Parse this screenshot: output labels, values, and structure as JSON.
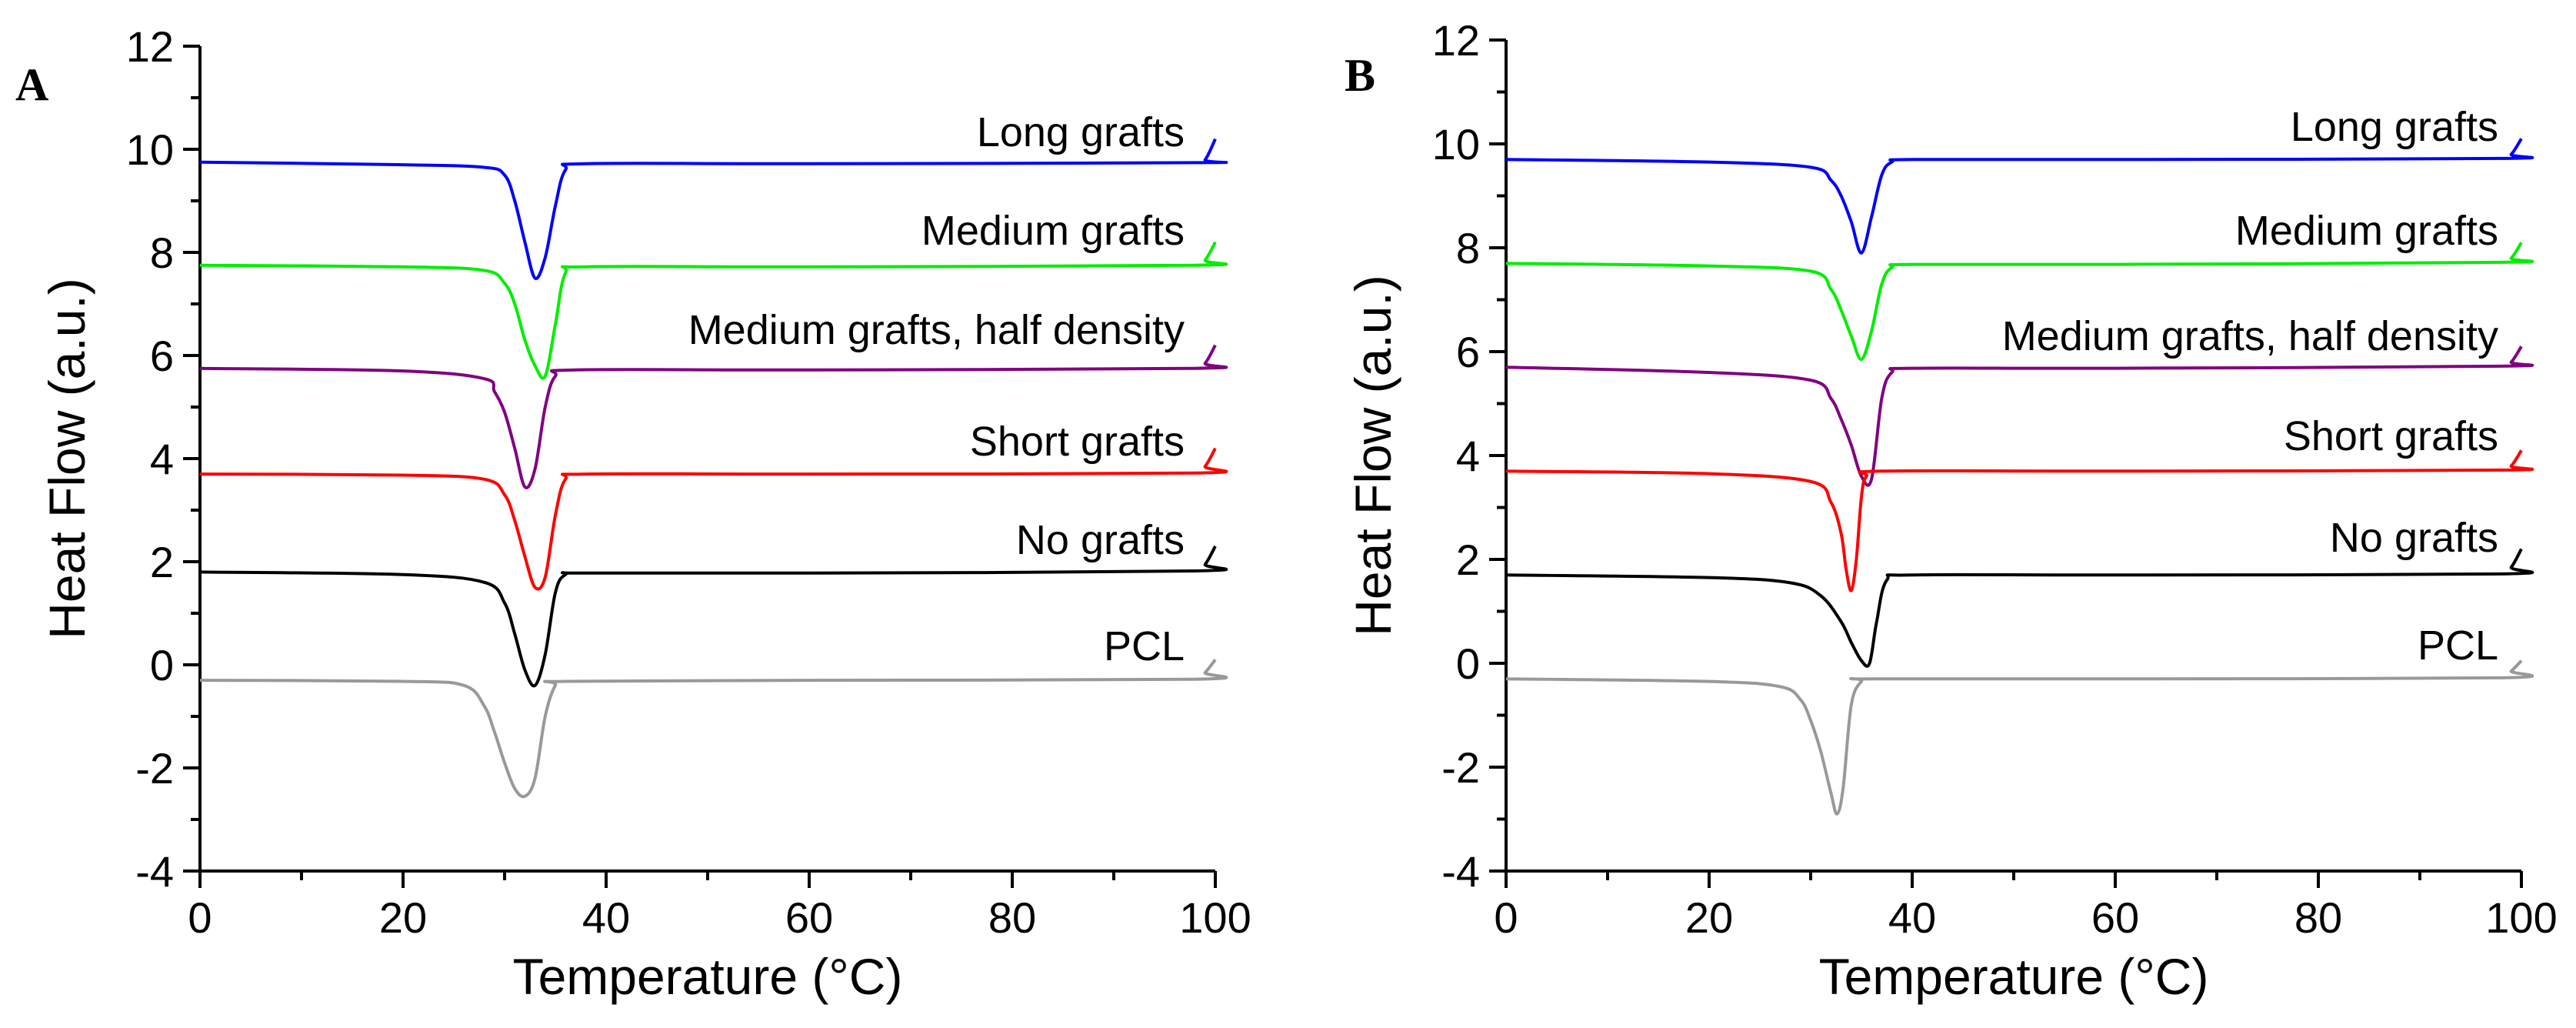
{
  "chart_data": [
    {
      "type": "line",
      "panel_label": "A",
      "xlabel": "Temperature (°C)",
      "ylabel": "Heat Flow (a.u.)",
      "xlim": [
        0,
        100
      ],
      "ylim": [
        -4,
        12
      ],
      "xticks": [
        0,
        20,
        40,
        60,
        80,
        100
      ],
      "yticks": [
        -4,
        -2,
        0,
        2,
        4,
        6,
        8,
        10,
        12
      ],
      "series": [
        {
          "name": "Long grafts",
          "color": "#0000ff",
          "x": [
            0,
            20,
            28,
            30,
            31,
            32,
            33,
            34,
            35,
            36,
            38,
            60,
            98,
            99,
            100
          ],
          "y": [
            9.75,
            9.7,
            9.65,
            9.5,
            9.0,
            8.2,
            7.5,
            7.9,
            8.9,
            9.6,
            9.72,
            9.72,
            9.74,
            9.8,
            10.2
          ]
        },
        {
          "name": "Medium grafts",
          "color": "#00ee00",
          "x": [
            0,
            20,
            28,
            30,
            31,
            32,
            33,
            34,
            35,
            36,
            38,
            60,
            98,
            99,
            100
          ],
          "y": [
            7.75,
            7.72,
            7.65,
            7.4,
            7.0,
            6.3,
            5.8,
            5.6,
            6.6,
            7.6,
            7.72,
            7.72,
            7.75,
            7.85,
            8.2
          ]
        },
        {
          "name": "Medium grafts, half density",
          "color": "#800080",
          "x": [
            0,
            20,
            28,
            29,
            30,
            31,
            32,
            33,
            34,
            35,
            37,
            60,
            98,
            99,
            100
          ],
          "y": [
            5.75,
            5.7,
            5.55,
            5.3,
            4.9,
            4.2,
            3.45,
            3.8,
            5.0,
            5.6,
            5.72,
            5.72,
            5.75,
            5.85,
            6.2
          ]
        },
        {
          "name": "Short grafts",
          "color": "#ff0000",
          "x": [
            0,
            20,
            28,
            30,
            31,
            32,
            33,
            34,
            35,
            36,
            38,
            60,
            98,
            99,
            100
          ],
          "y": [
            3.7,
            3.68,
            3.6,
            3.3,
            2.8,
            2.1,
            1.5,
            1.7,
            2.9,
            3.6,
            3.7,
            3.7,
            3.72,
            3.85,
            4.2
          ]
        },
        {
          "name": "No grafts",
          "color": "#000000",
          "x": [
            0,
            20,
            28,
            30,
            31,
            32,
            33,
            34,
            35,
            36,
            38,
            60,
            98,
            99,
            100
          ],
          "y": [
            1.8,
            1.75,
            1.6,
            1.2,
            0.6,
            -0.1,
            -0.4,
            0.2,
            1.4,
            1.75,
            1.78,
            1.78,
            1.82,
            1.95,
            2.3
          ]
        },
        {
          "name": "PCL",
          "color": "#999999",
          "x": [
            0,
            20,
            26,
            28,
            29,
            30,
            31,
            32,
            33,
            34,
            35,
            36,
            60,
            98,
            99,
            100
          ],
          "y": [
            -0.3,
            -0.32,
            -0.4,
            -0.8,
            -1.3,
            -1.9,
            -2.4,
            -2.55,
            -2.2,
            -1.0,
            -0.4,
            -0.32,
            -0.3,
            -0.28,
            -0.15,
            0.1
          ]
        }
      ]
    },
    {
      "type": "line",
      "panel_label": "B",
      "xlabel": "Temperature (°C)",
      "ylabel": "Heat Flow (a.u.)",
      "xlim": [
        0,
        100
      ],
      "ylim": [
        -4,
        12
      ],
      "xticks": [
        0,
        20,
        40,
        60,
        80,
        100
      ],
      "yticks": [
        -4,
        -2,
        0,
        2,
        4,
        6,
        8,
        10,
        12
      ],
      "series": [
        {
          "name": "Long grafts",
          "color": "#0000ff",
          "x": [
            0,
            20,
            30,
            32,
            33,
            34,
            35,
            36,
            37,
            38,
            40,
            60,
            98,
            99,
            100
          ],
          "y": [
            9.7,
            9.65,
            9.55,
            9.3,
            9.0,
            8.5,
            7.9,
            8.6,
            9.4,
            9.65,
            9.7,
            9.7,
            9.72,
            9.8,
            10.1
          ]
        },
        {
          "name": "Medium grafts",
          "color": "#00ee00",
          "x": [
            0,
            20,
            30,
            32,
            33,
            34,
            35,
            36,
            37,
            38,
            40,
            60,
            98,
            99,
            100
          ],
          "y": [
            7.7,
            7.65,
            7.55,
            7.2,
            6.8,
            6.3,
            5.85,
            6.4,
            7.3,
            7.62,
            7.68,
            7.68,
            7.72,
            7.8,
            8.1
          ]
        },
        {
          "name": "Medium grafts, half density",
          "color": "#800080",
          "x": [
            0,
            20,
            30,
            32,
            33,
            34,
            35,
            36,
            37,
            38,
            40,
            60,
            98,
            99,
            100
          ],
          "y": [
            5.7,
            5.6,
            5.45,
            5.1,
            4.7,
            4.2,
            3.6,
            3.55,
            5.1,
            5.6,
            5.68,
            5.68,
            5.72,
            5.8,
            6.1
          ]
        },
        {
          "name": "Short grafts",
          "color": "#ff0000",
          "x": [
            0,
            20,
            30,
            32,
            33,
            33.5,
            34,
            34.5,
            35,
            35.5,
            37,
            60,
            98,
            99,
            100
          ],
          "y": [
            3.7,
            3.65,
            3.5,
            3.1,
            2.5,
            1.8,
            1.4,
            2.0,
            3.2,
            3.6,
            3.7,
            3.7,
            3.72,
            3.8,
            4.1
          ]
        },
        {
          "name": "No grafts",
          "color": "#000000",
          "x": [
            0,
            20,
            28,
            31,
            33,
            34,
            35,
            35.8,
            36.5,
            37.5,
            40,
            60,
            98,
            99,
            100
          ],
          "y": [
            1.7,
            1.65,
            1.55,
            1.3,
            0.8,
            0.4,
            0.05,
            0.0,
            0.8,
            1.6,
            1.7,
            1.7,
            1.72,
            1.85,
            2.2
          ]
        },
        {
          "name": "PCL",
          "color": "#999999",
          "x": [
            0,
            20,
            27,
            29,
            30,
            31,
            32,
            32.6,
            33.2,
            34,
            35,
            36,
            60,
            98,
            99,
            100
          ],
          "y": [
            -0.3,
            -0.35,
            -0.45,
            -0.7,
            -1.1,
            -1.7,
            -2.5,
            -2.9,
            -2.4,
            -0.8,
            -0.35,
            -0.3,
            -0.3,
            -0.28,
            -0.15,
            0.05
          ]
        }
      ]
    }
  ]
}
